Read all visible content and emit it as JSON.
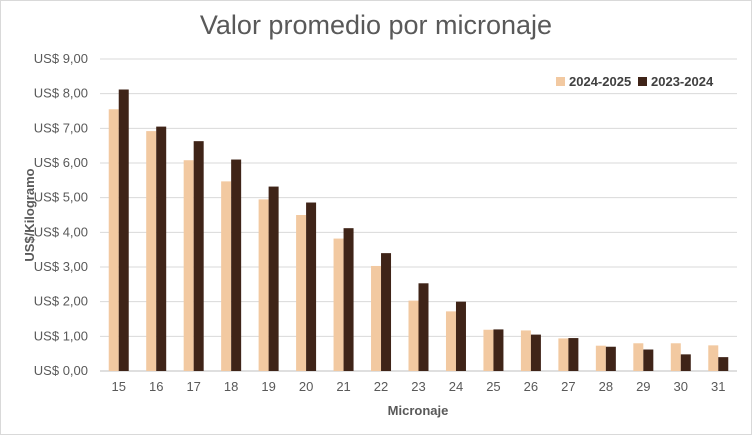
{
  "chart_data": {
    "type": "bar",
    "title": "Valor promedio por micronaje",
    "xlabel": "Micronaje",
    "ylabel": "US$/Kilogramo",
    "categories": [
      "15",
      "16",
      "17",
      "18",
      "19",
      "20",
      "21",
      "22",
      "23",
      "24",
      "25",
      "26",
      "27",
      "28",
      "29",
      "30",
      "31"
    ],
    "series": [
      {
        "name": "2024-2025",
        "color": "#f2c9a1",
        "values": [
          7.55,
          6.92,
          6.08,
          5.47,
          4.95,
          4.5,
          3.82,
          3.03,
          2.03,
          1.72,
          1.19,
          1.17,
          0.94,
          0.73,
          0.8,
          0.8,
          0.74
        ]
      },
      {
        "name": "2023-2024",
        "color": "#3f2418",
        "values": [
          8.12,
          7.05,
          6.63,
          6.1,
          5.32,
          4.86,
          4.12,
          3.4,
          2.53,
          2.0,
          1.2,
          1.05,
          0.95,
          0.7,
          0.62,
          0.48,
          0.4
        ]
      }
    ],
    "ylim": [
      0,
      9
    ],
    "yticks": [
      "US$ 0,00",
      "US$ 1,00",
      "US$ 2,00",
      "US$ 3,00",
      "US$ 4,00",
      "US$ 5,00",
      "US$ 6,00",
      "US$ 7,00",
      "US$ 8,00",
      "US$ 9,00"
    ],
    "grid": "horizontal",
    "legend": "top-right"
  }
}
